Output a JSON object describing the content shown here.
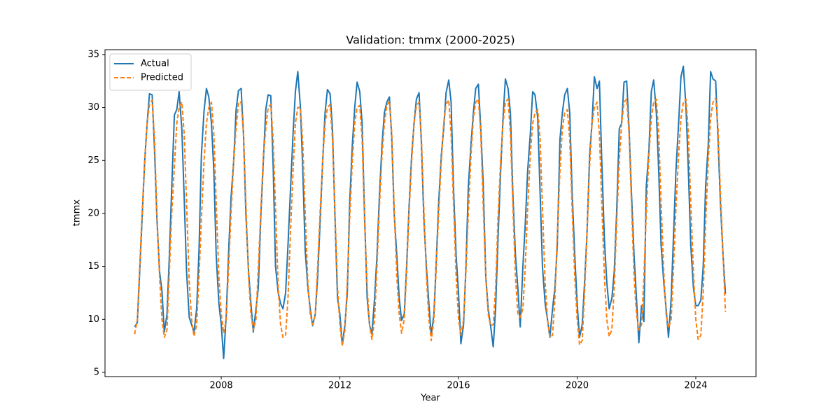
{
  "chart_data": {
    "type": "line",
    "title": "Validation: tmmx (2000-2025)",
    "xlabel": "Year",
    "ylabel": "tmmx",
    "legend": "upper left",
    "grid": false,
    "xlim": [
      2004.08,
      2026.03
    ],
    "xticks": [
      2008,
      2012,
      2016,
      2020,
      2024
    ],
    "ylim": [
      4.6,
      35.46
    ],
    "yticks": [
      5,
      10,
      15,
      20,
      25,
      30,
      35
    ],
    "x": [
      2005.08,
      2005.17,
      2005.25,
      2005.33,
      2005.42,
      2005.5,
      2005.58,
      2005.67,
      2005.75,
      2005.83,
      2005.92,
      2006,
      2006.08,
      2006.17,
      2006.25,
      2006.33,
      2006.42,
      2006.5,
      2006.58,
      2006.67,
      2006.75,
      2006.83,
      2006.92,
      2007,
      2007.08,
      2007.17,
      2007.25,
      2007.33,
      2007.42,
      2007.5,
      2007.58,
      2007.67,
      2007.75,
      2007.83,
      2007.92,
      2008,
      2008.08,
      2008.17,
      2008.25,
      2008.33,
      2008.42,
      2008.5,
      2008.58,
      2008.67,
      2008.75,
      2008.83,
      2008.92,
      2009,
      2009.08,
      2009.17,
      2009.25,
      2009.33,
      2009.42,
      2009.5,
      2009.58,
      2009.67,
      2009.75,
      2009.83,
      2009.92,
      2010,
      2010.08,
      2010.17,
      2010.25,
      2010.33,
      2010.42,
      2010.5,
      2010.58,
      2010.67,
      2010.75,
      2010.83,
      2010.92,
      2011,
      2011.08,
      2011.17,
      2011.25,
      2011.33,
      2011.42,
      2011.5,
      2011.58,
      2011.67,
      2011.75,
      2011.83,
      2011.92,
      2012,
      2012.08,
      2012.17,
      2012.25,
      2012.33,
      2012.42,
      2012.5,
      2012.58,
      2012.67,
      2012.75,
      2012.83,
      2012.92,
      2013,
      2013.08,
      2013.17,
      2013.25,
      2013.33,
      2013.42,
      2013.5,
      2013.58,
      2013.67,
      2013.75,
      2013.83,
      2013.92,
      2014,
      2014.08,
      2014.17,
      2014.25,
      2014.33,
      2014.42,
      2014.5,
      2014.58,
      2014.67,
      2014.75,
      2014.83,
      2014.92,
      2015,
      2015.08,
      2015.17,
      2015.25,
      2015.33,
      2015.42,
      2015.5,
      2015.58,
      2015.67,
      2015.75,
      2015.83,
      2015.92,
      2016,
      2016.08,
      2016.17,
      2016.25,
      2016.33,
      2016.42,
      2016.5,
      2016.58,
      2016.67,
      2016.75,
      2016.83,
      2016.92,
      2017,
      2017.08,
      2017.17,
      2017.25,
      2017.33,
      2017.42,
      2017.5,
      2017.58,
      2017.67,
      2017.75,
      2017.83,
      2017.92,
      2018,
      2018.08,
      2018.17,
      2018.25,
      2018.33,
      2018.42,
      2018.5,
      2018.58,
      2018.67,
      2018.75,
      2018.83,
      2018.92,
      2019,
      2019.08,
      2019.17,
      2019.25,
      2019.33,
      2019.42,
      2019.5,
      2019.58,
      2019.67,
      2019.75,
      2019.83,
      2019.92,
      2020,
      2020.08,
      2020.17,
      2020.25,
      2020.33,
      2020.42,
      2020.5,
      2020.58,
      2020.67,
      2020.75,
      2020.83,
      2020.92,
      2021,
      2021.08,
      2021.17,
      2021.25,
      2021.33,
      2021.42,
      2021.5,
      2021.58,
      2021.67,
      2021.75,
      2021.83,
      2021.92,
      2022,
      2022.08,
      2022.17,
      2022.25,
      2022.33,
      2022.42,
      2022.5,
      2022.58,
      2022.67,
      2022.75,
      2022.83,
      2022.92,
      2023,
      2023.08,
      2023.17,
      2023.25,
      2023.33,
      2023.42,
      2023.5,
      2023.58,
      2023.67,
      2023.75,
      2023.83,
      2023.92,
      2024,
      2024.08,
      2024.17,
      2024.25,
      2024.33,
      2024.42,
      2024.5,
      2024.58,
      2024.67,
      2024.75,
      2024.83,
      2024.92,
      2025
    ],
    "series": [
      {
        "name": "Actual",
        "color": "#1f77b4",
        "linestyle": "solid",
        "values": [
          9.3,
          9.7,
          14.5,
          19.5,
          25.0,
          28.5,
          31.3,
          31.2,
          26.0,
          19.5,
          14.5,
          12.7,
          8.8,
          10.5,
          16.0,
          22.5,
          29.3,
          29.8,
          31.5,
          28.0,
          21.5,
          14.5,
          10.2,
          9.5,
          8.8,
          11.0,
          16.5,
          25.5,
          29.7,
          31.8,
          31.0,
          28.5,
          24.0,
          16.0,
          11.5,
          9.5,
          6.3,
          10.5,
          16.5,
          21.5,
          25.0,
          29.8,
          31.6,
          31.8,
          27.5,
          20.0,
          14.5,
          11.5,
          8.8,
          11.0,
          13.0,
          19.5,
          25.0,
          29.8,
          31.2,
          31.1,
          24.5,
          15.0,
          12.5,
          11.5,
          11.0,
          12.5,
          17.0,
          22.0,
          27.5,
          31.5,
          33.4,
          30.0,
          24.0,
          16.5,
          13.0,
          11.0,
          9.4,
          10.5,
          14.0,
          19.0,
          25.0,
          29.5,
          31.7,
          31.3,
          28.0,
          20.0,
          12.0,
          10.5,
          7.6,
          9.5,
          12.5,
          21.0,
          26.5,
          30.0,
          32.4,
          31.5,
          28.5,
          20.0,
          12.0,
          9.5,
          8.6,
          12.0,
          16.0,
          21.5,
          26.5,
          29.5,
          30.5,
          31.0,
          27.0,
          20.0,
          16.0,
          12.0,
          9.9,
          10.5,
          15.0,
          20.5,
          25.5,
          28.5,
          30.8,
          31.4,
          26.5,
          19.5,
          14.8,
          11.5,
          8.5,
          10.5,
          15.5,
          21.0,
          25.5,
          28.0,
          31.4,
          32.6,
          30.5,
          22.5,
          16.0,
          12.5,
          7.7,
          9.5,
          15.0,
          22.5,
          26.5,
          29.5,
          31.8,
          32.2,
          28.0,
          23.0,
          14.0,
          11.0,
          9.4,
          7.4,
          11.0,
          17.5,
          24.0,
          29.0,
          32.7,
          31.8,
          29.5,
          22.0,
          16.0,
          13.0,
          9.3,
          15.0,
          19.0,
          24.0,
          27.5,
          31.5,
          31.2,
          29.0,
          22.0,
          15.0,
          11.5,
          10.0,
          8.3,
          11.0,
          13.0,
          17.0,
          27.0,
          29.5,
          31.2,
          31.8,
          29.5,
          22.0,
          16.0,
          11.5,
          8.3,
          9.5,
          13.5,
          18.0,
          25.5,
          28.5,
          32.9,
          31.8,
          32.5,
          25.0,
          17.5,
          13.5,
          11.0,
          12.0,
          14.5,
          20.0,
          28.0,
          28.5,
          32.4,
          32.5,
          28.0,
          22.0,
          16.0,
          12.0,
          7.8,
          11.3,
          9.8,
          22.5,
          26.0,
          31.5,
          32.6,
          29.5,
          24.0,
          17.0,
          13.5,
          11.0,
          8.3,
          12.0,
          18.0,
          24.0,
          28.5,
          32.9,
          33.9,
          30.0,
          24.0,
          17.0,
          13.0,
          11.3,
          11.3,
          11.8,
          15.0,
          22.5,
          26.5,
          33.4,
          32.7,
          32.5,
          27.0,
          21.0,
          16.0,
          12.4
        ]
      },
      {
        "name": "Predicted",
        "color": "#ff7f0e",
        "linestyle": "dashed",
        "values": [
          8.6,
          10.0,
          15.0,
          20.0,
          25.0,
          28.5,
          30.3,
          30.7,
          27.0,
          20.0,
          14.0,
          10.0,
          8.3,
          9.0,
          14.5,
          20.0,
          24.5,
          28.5,
          30.0,
          30.5,
          27.5,
          21.0,
          13.5,
          10.0,
          8.4,
          9.5,
          14.0,
          19.5,
          25.0,
          28.5,
          30.0,
          30.5,
          27.5,
          21.0,
          14.0,
          10.5,
          8.7,
          10.0,
          15.0,
          20.0,
          25.0,
          28.0,
          30.5,
          30.5,
          27.5,
          21.0,
          14.0,
          10.5,
          9.0,
          10.0,
          15.0,
          20.0,
          25.5,
          28.0,
          30.0,
          30.3,
          27.0,
          20.5,
          13.0,
          9.5,
          8.3,
          8.5,
          12.0,
          18.0,
          24.0,
          28.5,
          30.0,
          30.0,
          26.5,
          20.0,
          13.5,
          10.5,
          9.5,
          10.5,
          15.0,
          20.0,
          25.0,
          28.5,
          30.0,
          30.3,
          27.0,
          20.5,
          13.0,
          9.5,
          7.5,
          9.0,
          13.5,
          19.5,
          25.0,
          28.5,
          30.0,
          30.2,
          27.0,
          19.5,
          13.0,
          9.5,
          8.1,
          10.0,
          15.0,
          20.5,
          25.5,
          28.5,
          30.2,
          30.6,
          27.5,
          20.5,
          14.0,
          10.5,
          8.7,
          10.0,
          14.5,
          20.0,
          25.0,
          28.5,
          30.2,
          30.5,
          27.0,
          20.5,
          14.0,
          10.0,
          8.0,
          10.0,
          15.0,
          20.0,
          25.0,
          28.5,
          30.3,
          30.7,
          27.5,
          21.0,
          14.0,
          10.0,
          8.5,
          10.0,
          14.5,
          20.0,
          25.5,
          29.0,
          30.5,
          30.8,
          27.5,
          21.0,
          14.0,
          10.5,
          9.4,
          9.5,
          13.0,
          19.5,
          25.0,
          28.5,
          30.5,
          30.8,
          27.5,
          21.0,
          14.0,
          10.5,
          10.2,
          11.0,
          15.0,
          20.5,
          25.5,
          28.5,
          29.5,
          29.8,
          27.0,
          20.5,
          13.5,
          10.0,
          8.3,
          8.5,
          12.0,
          18.0,
          24.0,
          28.0,
          29.5,
          29.8,
          27.0,
          20.5,
          14.0,
          10.0,
          7.6,
          8.0,
          12.5,
          18.0,
          24.5,
          28.5,
          30.0,
          30.5,
          27.5,
          21.0,
          14.0,
          10.0,
          8.4,
          9.0,
          13.0,
          19.0,
          25.0,
          28.5,
          30.5,
          30.8,
          27.5,
          21.0,
          14.0,
          10.5,
          9.0,
          9.5,
          14.0,
          20.0,
          25.5,
          29.0,
          30.5,
          30.8,
          27.5,
          21.0,
          14.5,
          10.5,
          9.2,
          10.0,
          15.0,
          20.5,
          25.5,
          29.0,
          30.5,
          30.8,
          27.5,
          21.0,
          14.5,
          10.0,
          8.1,
          8.5,
          12.5,
          19.0,
          25.0,
          29.0,
          30.5,
          30.9,
          28.0,
          22.0,
          16.0,
          10.7
        ]
      }
    ]
  }
}
